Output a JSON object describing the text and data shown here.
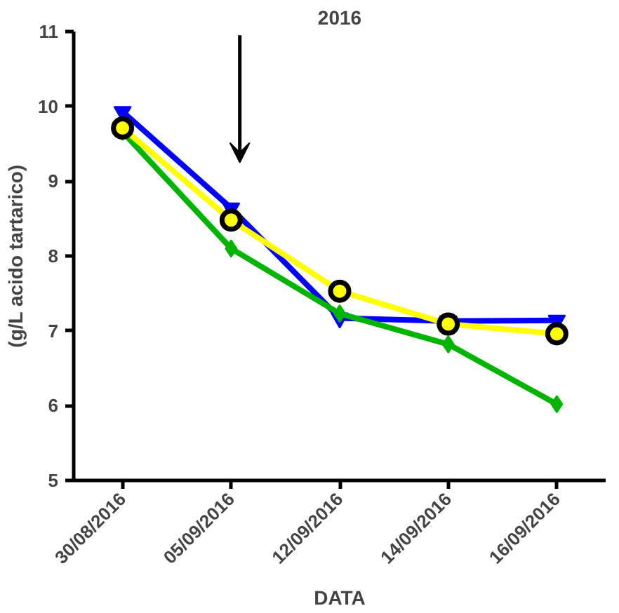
{
  "chart_data": {
    "type": "line",
    "title": "2016",
    "xlabel": "DATA",
    "ylabel": "(g/L acido tartarico)",
    "categories": [
      "30/08/2016",
      "05/09/2016",
      "12/09/2016",
      "14/09/2016",
      "16/09/2016"
    ],
    "ylim": [
      5,
      11
    ],
    "yticks": [
      5,
      6,
      7,
      8,
      9,
      10,
      11
    ],
    "grid": false,
    "series": [
      {
        "color": "#0000ff",
        "marker": "triangle",
        "values": [
          9.93,
          8.64,
          7.17,
          7.13,
          7.14
        ]
      },
      {
        "color": "#00b400",
        "marker": "diamond",
        "values": [
          9.66,
          8.1,
          7.23,
          6.82,
          6.02
        ]
      },
      {
        "color": "#ffff00",
        "marker": "circle",
        "values": [
          9.71,
          8.48,
          7.53,
          7.09,
          6.96
        ]
      }
    ]
  }
}
